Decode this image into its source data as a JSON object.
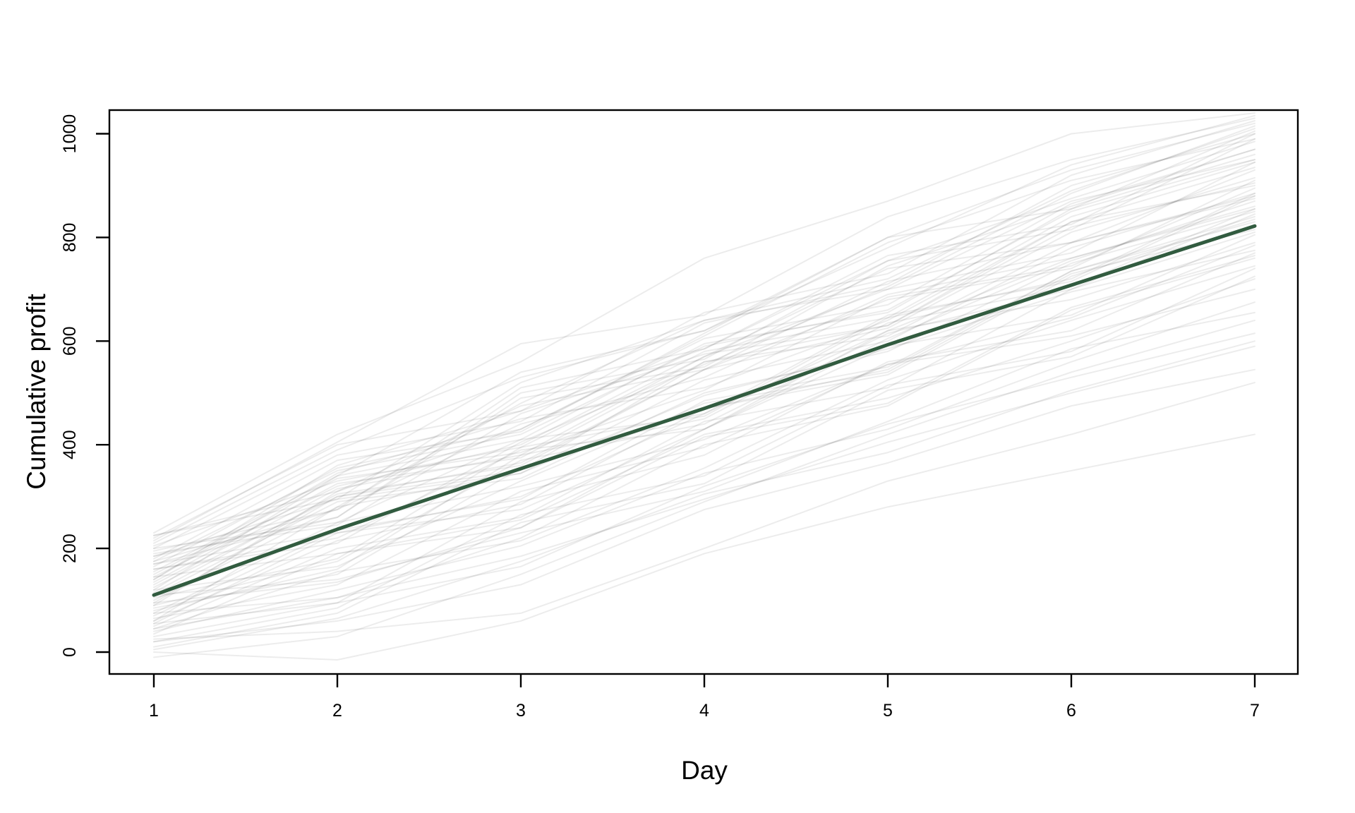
{
  "chart_data": {
    "type": "line",
    "title": "",
    "xlabel": "Day",
    "ylabel": "Cumulative profit",
    "x": [
      1,
      2,
      3,
      4,
      5,
      6,
      7
    ],
    "x_ticks": [
      "1",
      "2",
      "3",
      "4",
      "5",
      "6",
      "7"
    ],
    "y_ticks": [
      "0",
      "200",
      "400",
      "600",
      "800",
      "1000"
    ],
    "y_tick_values": [
      0,
      200,
      400,
      600,
      800,
      1000
    ],
    "xlim": [
      0.76,
      7.24
    ],
    "ylim": [
      -42,
      1045
    ],
    "grid": false,
    "legend_position": "none",
    "axis_color": "#000000",
    "series": [
      {
        "name": "mean-cumulative-profit",
        "color": "#315b3f",
        "width": 5,
        "opacity": 1,
        "values": [
          110,
          237,
          354,
          470,
          593,
          708,
          822
        ]
      }
    ],
    "background_paths": {
      "name": "simulated-cumulative-profit-paths",
      "color": "#000000",
      "opacity": 0.075,
      "width": 2,
      "values": [
        [
          225,
          295,
          520,
          640,
          700,
          870,
          950
        ],
        [
          180,
          370,
          425,
          615,
          800,
          855,
          1005
        ],
        [
          160,
          220,
          390,
          430,
          620,
          760,
          855
        ],
        [
          205,
          330,
          395,
          570,
          740,
          790,
          930
        ],
        [
          140,
          345,
          450,
          510,
          640,
          830,
          900
        ],
        [
          95,
          300,
          350,
          560,
          610,
          790,
          880
        ],
        [
          120,
          165,
          330,
          480,
          540,
          730,
          815
        ],
        [
          75,
          250,
          410,
          455,
          645,
          720,
          885
        ],
        [
          190,
          245,
          460,
          575,
          630,
          820,
          905
        ],
        [
          55,
          230,
          275,
          430,
          590,
          650,
          805
        ],
        [
          130,
          315,
          380,
          570,
          700,
          770,
          945
        ],
        [
          170,
          260,
          490,
          550,
          745,
          860,
          970
        ],
        [
          30,
          95,
          290,
          380,
          560,
          620,
          770
        ],
        [
          110,
          290,
          335,
          500,
          580,
          750,
          850
        ],
        [
          85,
          150,
          355,
          470,
          545,
          735,
          830
        ],
        [
          150,
          335,
          385,
          505,
          685,
          745,
          895
        ],
        [
          210,
          390,
          530,
          620,
          800,
          930,
          1020
        ],
        [
          65,
          130,
          310,
          395,
          555,
          645,
          785
        ],
        [
          100,
          280,
          345,
          525,
          600,
          780,
          885
        ],
        [
          45,
          105,
          220,
          400,
          475,
          660,
          760
        ],
        [
          175,
          350,
          420,
          590,
          660,
          850,
          950
        ],
        [
          125,
          300,
          365,
          545,
          625,
          810,
          915
        ],
        [
          90,
          175,
          370,
          440,
          615,
          700,
          845
        ],
        [
          200,
          380,
          445,
          635,
          710,
          900,
          1000
        ],
        [
          20,
          85,
          265,
          340,
          515,
          580,
          740
        ],
        [
          145,
          320,
          400,
          580,
          645,
          840,
          945
        ],
        [
          60,
          215,
          285,
          470,
          535,
          725,
          835
        ],
        [
          115,
          305,
          360,
          545,
          680,
          740,
          910
        ],
        [
          185,
          260,
          500,
          565,
          755,
          815,
          990
        ],
        [
          35,
          190,
          240,
          415,
          480,
          665,
          765
        ],
        [
          155,
          340,
          410,
          595,
          655,
          855,
          960
        ],
        [
          105,
          180,
          395,
          460,
          650,
          715,
          880
        ],
        [
          70,
          235,
          295,
          485,
          550,
          735,
          840
        ],
        [
          195,
          275,
          510,
          585,
          765,
          825,
          1000
        ],
        [
          10,
          75,
          250,
          325,
          505,
          570,
          725
        ],
        [
          135,
          325,
          375,
          560,
          630,
          830,
          935
        ],
        [
          50,
          200,
          260,
          445,
          510,
          700,
          810
        ],
        [
          165,
          355,
          430,
          605,
          670,
          865,
          970
        ],
        [
          80,
          160,
          380,
          450,
          635,
          705,
          855
        ],
        [
          220,
          400,
          465,
          655,
          730,
          920,
          1025
        ],
        [
          -10,
          30,
          150,
          290,
          420,
          540,
          640
        ],
        [
          25,
          40,
          75,
          200,
          330,
          420,
          520
        ],
        [
          0,
          -15,
          60,
          190,
          280,
          350,
          420
        ],
        [
          230,
          420,
          560,
          760,
          870,
          1000,
          1040
        ],
        [
          215,
          405,
          595,
          650,
          840,
          950,
          1030
        ],
        [
          60,
          280,
          480,
          640,
          720,
          890,
          1010
        ],
        [
          120,
          340,
          540,
          620,
          780,
          940,
          1035
        ],
        [
          90,
          310,
          430,
          610,
          790,
          910,
          990
        ],
        [
          40,
          120,
          205,
          345,
          430,
          560,
          675
        ],
        [
          170,
          230,
          300,
          460,
          620,
          680,
          790
        ],
        [
          145,
          190,
          255,
          420,
          490,
          600,
          720
        ],
        [
          200,
          250,
          320,
          410,
          555,
          610,
          700
        ],
        [
          110,
          140,
          230,
          310,
          445,
          585,
          655
        ],
        [
          75,
          105,
          185,
          295,
          405,
          500,
          590
        ],
        [
          185,
          295,
          345,
          495,
          585,
          695,
          775
        ],
        [
          20,
          60,
          130,
          275,
          365,
          475,
          545
        ],
        [
          160,
          210,
          405,
          555,
          705,
          885,
          1015
        ],
        [
          95,
          135,
          240,
          430,
          605,
          755,
          870
        ],
        [
          55,
          95,
          165,
          320,
          440,
          530,
          615
        ],
        [
          140,
          360,
          465,
          585,
          755,
          875,
          985
        ],
        [
          5,
          65,
          175,
          305,
          385,
          505,
          600
        ],
        [
          225,
          310,
          475,
          545,
          715,
          790,
          875
        ],
        [
          45,
          155,
          215,
          355,
          525,
          640,
          745
        ],
        [
          175,
          275,
          440,
          530,
          690,
          760,
          860
        ]
      ]
    }
  },
  "labels": {
    "xlabel": "Day",
    "ylabel": "Cumulative profit"
  }
}
